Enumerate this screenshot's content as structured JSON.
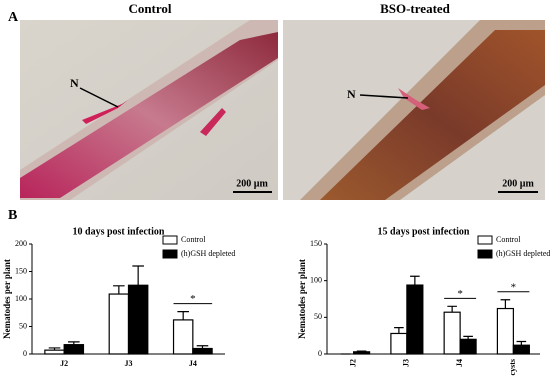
{
  "panel_a": {
    "label": "A",
    "left_title": "Control",
    "right_title": "BSO-treated",
    "left_marker": "N",
    "right_marker": "N",
    "left_scale": "200 µm",
    "right_scale": "200 µm"
  },
  "panel_b": {
    "label": "B"
  },
  "chart_data": [
    {
      "type": "bar",
      "title": "10 days post infection",
      "y_label": "Nematodes per plant",
      "categories": [
        "J2",
        "J3",
        "J4"
      ],
      "series": [
        {
          "name": "Control",
          "color": "#ffffff",
          "values": [
            7,
            109,
            62
          ],
          "errors": [
            4,
            15,
            15
          ]
        },
        {
          "name": "(h)GSH depleted",
          "color": "#000000",
          "values": [
            17,
            125,
            10
          ],
          "errors": [
            5,
            35,
            5
          ]
        }
      ],
      "annotations": [
        {
          "text": "*",
          "category": "J4"
        }
      ],
      "ylim": [
        0,
        200
      ],
      "yticks": [
        0,
        50,
        100,
        150,
        200
      ],
      "xtick_rotation": 0,
      "legend": "upper right"
    },
    {
      "type": "bar",
      "title": "15 days post infection",
      "y_label": "Nematodes per plant",
      "categories": [
        "J2",
        "J3",
        "J4",
        "cysts"
      ],
      "series": [
        {
          "name": "Control",
          "color": "#ffffff",
          "values": [
            0,
            28,
            57,
            62
          ],
          "errors": [
            0,
            8,
            8,
            12
          ]
        },
        {
          "name": "(h)GSH depleted",
          "color": "#000000",
          "values": [
            3,
            94,
            20,
            12
          ],
          "errors": [
            1,
            12,
            4,
            5
          ]
        }
      ],
      "annotations": [
        {
          "text": "*",
          "category": "J4"
        },
        {
          "text": "*",
          "category": "cysts"
        }
      ],
      "ylim": [
        0,
        150
      ],
      "yticks": [
        0,
        50,
        100,
        150
      ],
      "xtick_rotation": -90,
      "legend": "upper right"
    }
  ]
}
